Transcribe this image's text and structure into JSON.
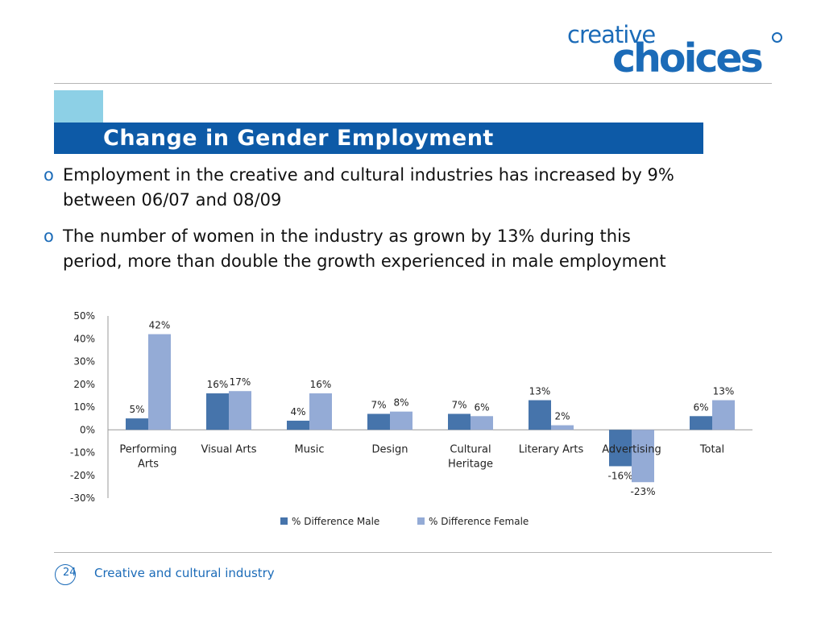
{
  "logo": {
    "line1": "creative",
    "line2": "choices"
  },
  "slide": {
    "title": "Change in Gender Employment"
  },
  "bullets": [
    {
      "marker": "o",
      "text": "Employment in the creative and cultural industries has increased by 9% between 06/07 and 08/09"
    },
    {
      "marker": "o",
      "text": "The number of women in the industry as grown by 13% during this period, more than double the growth experienced in male employment"
    }
  ],
  "chart_data": {
    "type": "bar",
    "title": "",
    "xlabel": "",
    "ylabel": "",
    "ylim": [
      -30,
      50
    ],
    "yticks": [
      50,
      40,
      30,
      20,
      10,
      0,
      -10,
      -20,
      -30
    ],
    "ytick_labels": [
      "50%",
      "40%",
      "30%",
      "20%",
      "10%",
      "0%",
      "-10%",
      "-20%",
      "-30%"
    ],
    "grid": false,
    "legend": "bottom",
    "categories": [
      [
        "Performing",
        "Arts"
      ],
      [
        "Visual Arts"
      ],
      [
        "Music"
      ],
      [
        "Design"
      ],
      [
        "Cultural",
        "Heritage"
      ],
      [
        "Literary Arts"
      ],
      [
        "Advertising"
      ],
      [
        "Total"
      ]
    ],
    "series": [
      {
        "name": "% Difference Male",
        "color": "#4674ab",
        "values": [
          5,
          16,
          4,
          7,
          7,
          13,
          -16,
          6
        ],
        "labels": [
          "5%",
          "16%",
          "4%",
          "7%",
          "7%",
          "13%",
          "-16%",
          "6%"
        ]
      },
      {
        "name": "% Difference Female",
        "color": "#94abd6",
        "values": [
          42,
          17,
          16,
          8,
          6,
          2,
          -23,
          13
        ],
        "labels": [
          "42%",
          "17%",
          "16%",
          "8%",
          "6%",
          "2%",
          "-23%",
          "13%"
        ]
      }
    ]
  },
  "footer": {
    "page_number": "24",
    "text": "Creative and cultural industry"
  }
}
